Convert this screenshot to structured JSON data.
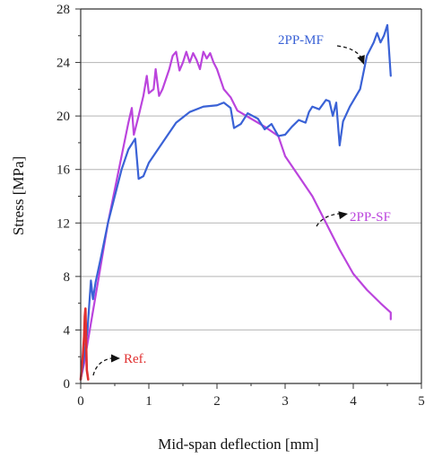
{
  "chart_data": {
    "type": "line",
    "xlabel": "Mid-span deflection [mm]",
    "ylabel": "Stress [MPa]",
    "xlim": [
      0,
      5
    ],
    "ylim": [
      0,
      28
    ],
    "x_ticks": [
      "0",
      "1",
      "2",
      "3",
      "4",
      "5"
    ],
    "y_ticks": [
      "0",
      "4",
      "8",
      "12",
      "16",
      "20",
      "24",
      "28"
    ],
    "grid": "horizontal",
    "series": [
      {
        "name": "Ref.",
        "color": "#e03030",
        "points": [
          [
            0.0,
            0.3
          ],
          [
            0.03,
            2.0
          ],
          [
            0.05,
            3.5
          ],
          [
            0.06,
            5.0
          ],
          [
            0.07,
            5.6
          ],
          [
            0.08,
            3.0
          ],
          [
            0.09,
            1.0
          ],
          [
            0.11,
            0.3
          ]
        ]
      },
      {
        "name": "2PP-SF",
        "color": "#bb44dd",
        "points": [
          [
            0.0,
            0.3
          ],
          [
            0.05,
            1.5
          ],
          [
            0.1,
            3.0
          ],
          [
            0.15,
            4.5
          ],
          [
            0.2,
            6.0
          ],
          [
            0.3,
            9.0
          ],
          [
            0.4,
            12.0
          ],
          [
            0.5,
            14.5
          ],
          [
            0.6,
            17.0
          ],
          [
            0.7,
            19.5
          ],
          [
            0.75,
            20.6
          ],
          [
            0.78,
            18.6
          ],
          [
            0.85,
            20.0
          ],
          [
            0.92,
            21.5
          ],
          [
            0.97,
            23.0
          ],
          [
            1.0,
            21.7
          ],
          [
            1.07,
            22.0
          ],
          [
            1.1,
            23.5
          ],
          [
            1.15,
            21.5
          ],
          [
            1.2,
            22.0
          ],
          [
            1.3,
            23.5
          ],
          [
            1.35,
            24.5
          ],
          [
            1.4,
            24.8
          ],
          [
            1.45,
            23.4
          ],
          [
            1.5,
            24.0
          ],
          [
            1.55,
            24.8
          ],
          [
            1.6,
            24.0
          ],
          [
            1.65,
            24.7
          ],
          [
            1.7,
            24.2
          ],
          [
            1.75,
            23.5
          ],
          [
            1.8,
            24.8
          ],
          [
            1.85,
            24.3
          ],
          [
            1.9,
            24.7
          ],
          [
            1.95,
            24.0
          ],
          [
            2.0,
            23.5
          ],
          [
            2.1,
            22.0
          ],
          [
            2.2,
            21.4
          ],
          [
            2.3,
            20.4
          ],
          [
            2.5,
            19.8
          ],
          [
            2.7,
            19.2
          ],
          [
            2.9,
            18.5
          ],
          [
            3.0,
            17.0
          ],
          [
            3.2,
            15.5
          ],
          [
            3.4,
            14.0
          ],
          [
            3.6,
            12.0
          ],
          [
            3.8,
            10.0
          ],
          [
            4.0,
            8.2
          ],
          [
            4.2,
            7.0
          ],
          [
            4.4,
            6.0
          ],
          [
            4.55,
            5.3
          ],
          [
            4.55,
            4.8
          ]
        ]
      },
      {
        "name": "2PP-MF",
        "color": "#3a62d6",
        "points": [
          [
            0.0,
            0.3
          ],
          [
            0.05,
            2.0
          ],
          [
            0.1,
            4.0
          ],
          [
            0.15,
            7.7
          ],
          [
            0.18,
            6.3
          ],
          [
            0.22,
            7.6
          ],
          [
            0.3,
            9.5
          ],
          [
            0.4,
            12.0
          ],
          [
            0.5,
            14.0
          ],
          [
            0.6,
            16.0
          ],
          [
            0.7,
            17.5
          ],
          [
            0.8,
            18.3
          ],
          [
            0.85,
            15.3
          ],
          [
            0.92,
            15.5
          ],
          [
            1.0,
            16.5
          ],
          [
            1.2,
            18.0
          ],
          [
            1.4,
            19.5
          ],
          [
            1.6,
            20.3
          ],
          [
            1.8,
            20.7
          ],
          [
            2.0,
            20.8
          ],
          [
            2.1,
            21.0
          ],
          [
            2.2,
            20.6
          ],
          [
            2.25,
            19.1
          ],
          [
            2.35,
            19.4
          ],
          [
            2.45,
            20.2
          ],
          [
            2.6,
            19.8
          ],
          [
            2.7,
            19.0
          ],
          [
            2.8,
            19.4
          ],
          [
            2.9,
            18.5
          ],
          [
            3.0,
            18.6
          ],
          [
            3.1,
            19.2
          ],
          [
            3.2,
            19.7
          ],
          [
            3.3,
            19.5
          ],
          [
            3.35,
            20.3
          ],
          [
            3.4,
            20.7
          ],
          [
            3.5,
            20.5
          ],
          [
            3.6,
            21.2
          ],
          [
            3.65,
            21.1
          ],
          [
            3.7,
            20.0
          ],
          [
            3.75,
            21.0
          ],
          [
            3.8,
            17.8
          ],
          [
            3.85,
            19.6
          ],
          [
            3.95,
            20.7
          ],
          [
            4.1,
            22.0
          ],
          [
            4.2,
            24.5
          ],
          [
            4.3,
            25.5
          ],
          [
            4.35,
            26.2
          ],
          [
            4.4,
            25.5
          ],
          [
            4.45,
            26.0
          ],
          [
            4.5,
            26.8
          ],
          [
            4.55,
            23.0
          ]
        ]
      }
    ]
  },
  "labels": {
    "ref": "Ref.",
    "sf": "2PP-SF",
    "mf": "2PP-MF"
  }
}
